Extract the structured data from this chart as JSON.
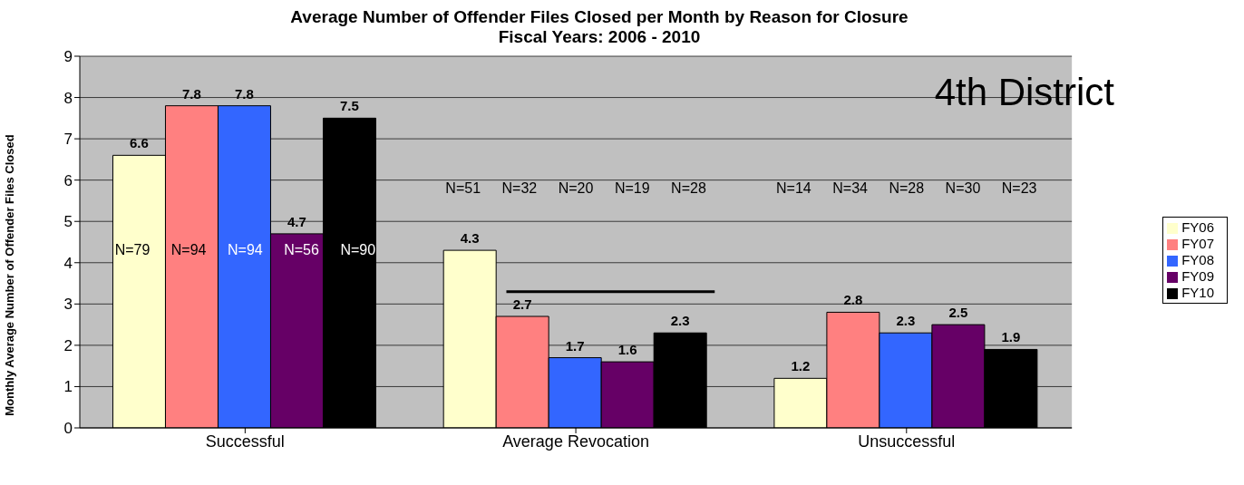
{
  "chart_data": {
    "type": "bar",
    "title": "Average Number of Offender Files Closed per Month by Reason for Closure",
    "subtitle": "Fiscal Years: 2006 - 2010",
    "ylabel": "Monthly Average Number of Offender Files Closed",
    "categories": [
      "Successful",
      "Average Revocation",
      "Unsuccessful"
    ],
    "series": [
      {
        "name": "FY06",
        "color": "#ffffcc",
        "values": [
          6.6,
          4.3,
          1.2
        ]
      },
      {
        "name": "FY07",
        "color": "#ff8080",
        "values": [
          7.8,
          2.7,
          2.8
        ]
      },
      {
        "name": "FY08",
        "color": "#3366ff",
        "values": [
          7.8,
          1.7,
          2.3
        ]
      },
      {
        "name": "FY09",
        "color": "#660066",
        "values": [
          4.7,
          1.6,
          2.5
        ]
      },
      {
        "name": "FY10",
        "color": "#000000",
        "values": [
          7.5,
          2.3,
          1.9
        ]
      }
    ],
    "ylim": [
      0,
      9
    ],
    "yticks": [
      0,
      1,
      2,
      3,
      4,
      5,
      6,
      7,
      8,
      9
    ],
    "grid": "y",
    "legend": "right",
    "data_labels": true,
    "ref_lines": [
      {
        "axis": "y",
        "value": 3.3,
        "color": "#000000"
      }
    ],
    "annotations": [
      "4th District",
      "N=79",
      "N=94",
      "N=94",
      "N=56",
      "N=90",
      "N=51",
      "N=32",
      "N=20",
      "N=19",
      "N=28",
      "N=14",
      "N=34",
      "N=28",
      "N=30",
      "N=23"
    ]
  }
}
